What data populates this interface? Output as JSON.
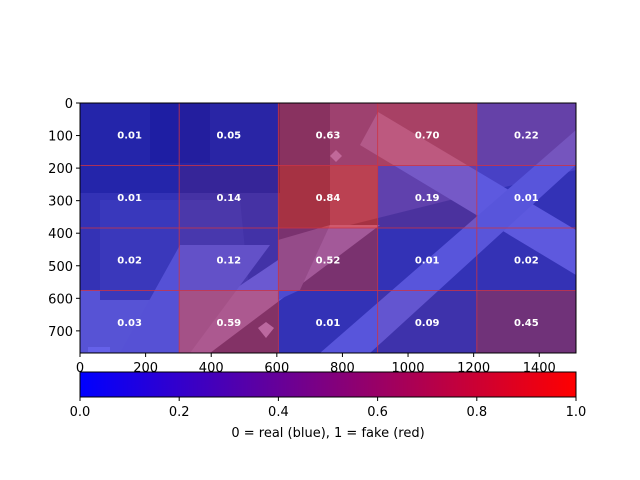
{
  "chart_data": {
    "type": "heatmap",
    "title": "",
    "background": "aerial-photo (runways, fields, aircraft)",
    "x_range": [
      0,
      1512
    ],
    "y_range": [
      0,
      768
    ],
    "y_inverted": true,
    "x_ticks": [
      "0",
      "200",
      "400",
      "600",
      "800",
      "1000",
      "1200",
      "1400"
    ],
    "x_tick_values": [
      0,
      200,
      400,
      600,
      800,
      1000,
      1200,
      1400
    ],
    "y_ticks": [
      "0",
      "100",
      "200",
      "300",
      "400",
      "500",
      "600",
      "700"
    ],
    "y_tick_values": [
      0,
      100,
      200,
      300,
      400,
      500,
      600,
      700
    ],
    "grid_rows": 4,
    "grid_cols": 5,
    "grid_line_color": "#cc3344",
    "values": [
      [
        0.01,
        0.05,
        0.63,
        0.7,
        0.22
      ],
      [
        0.01,
        0.14,
        0.84,
        0.19,
        0.01
      ],
      [
        0.02,
        0.12,
        0.52,
        0.01,
        0.02
      ],
      [
        0.03,
        0.59,
        0.01,
        0.09,
        0.45
      ]
    ],
    "value_labels": [
      [
        "0.01",
        "0.05",
        "0.63",
        "0.70",
        "0.22"
      ],
      [
        "0.01",
        "0.14",
        "0.84",
        "0.19",
        "0.01"
      ],
      [
        "0.02",
        "0.12",
        "0.52",
        "0.01",
        "0.02"
      ],
      [
        "0.03",
        "0.59",
        "0.01",
        "0.09",
        "0.45"
      ]
    ],
    "colorbar": {
      "orientation": "horizontal",
      "range": [
        0.0,
        1.0
      ],
      "color_low": "#0000ff",
      "color_high": "#ff0000",
      "ticks": [
        "0.0",
        "0.2",
        "0.4",
        "0.6",
        "0.8",
        "1.0"
      ],
      "tick_values": [
        0.0,
        0.2,
        0.4,
        0.6,
        0.8,
        1.0
      ],
      "label": "0 = real (blue), 1 = fake (red)"
    }
  }
}
